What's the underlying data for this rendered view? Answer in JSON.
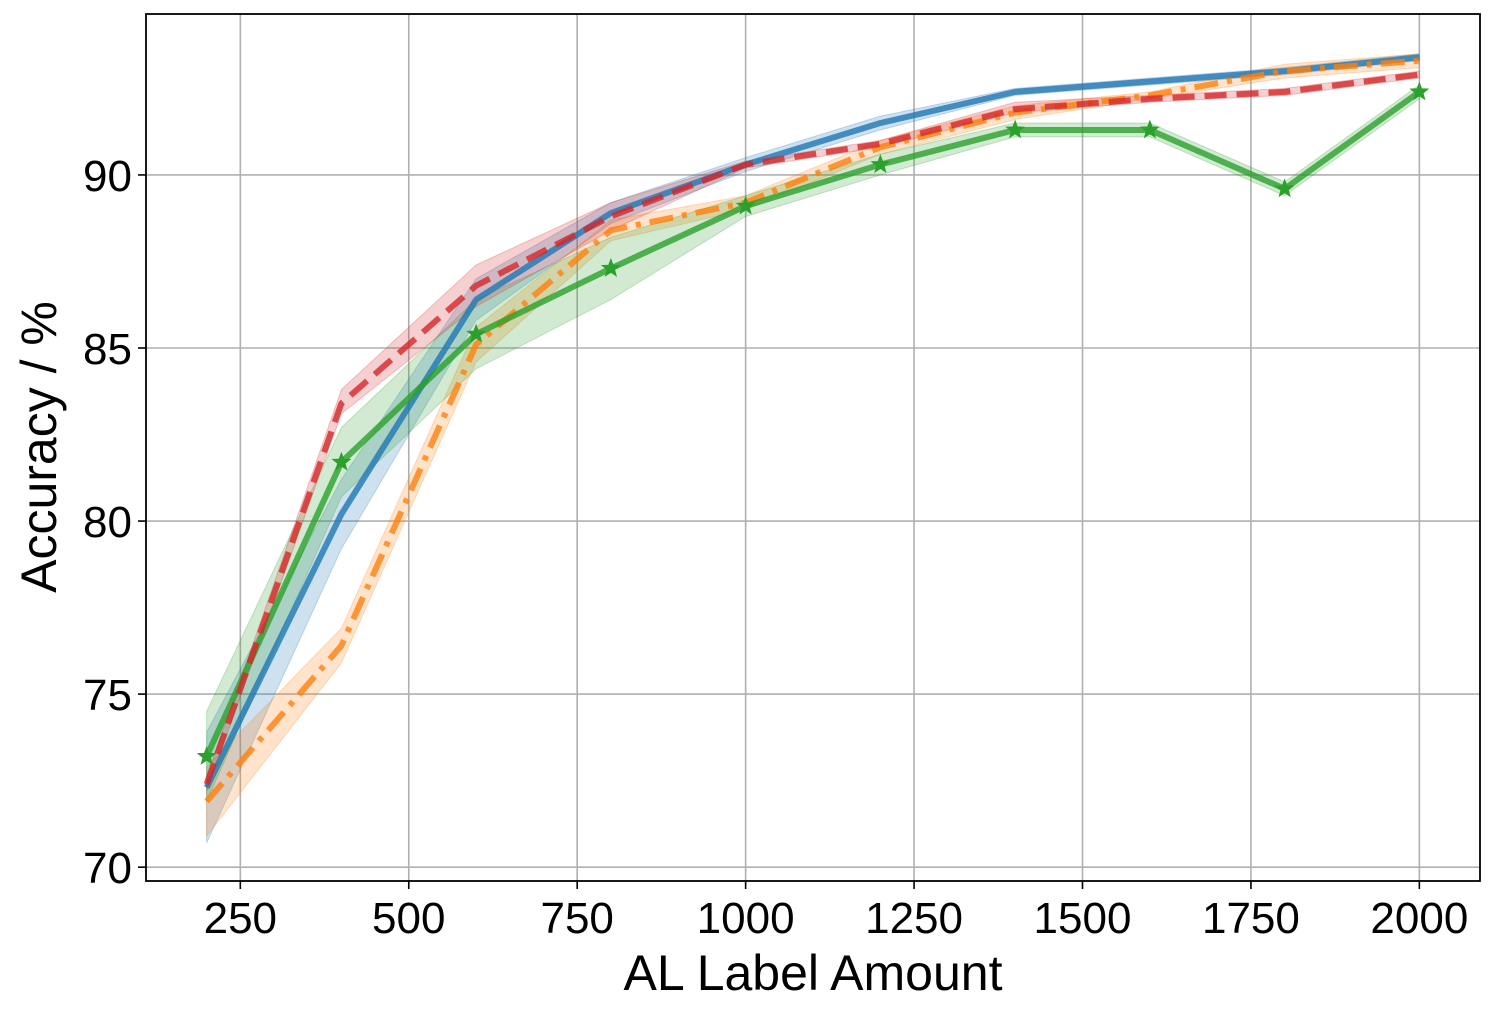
{
  "chart_data": {
    "type": "line",
    "title": "",
    "xlabel": "AL Label Amount",
    "ylabel": "Accuracy / %",
    "xlim": [
      110,
      2090
    ],
    "ylim": [
      69.6,
      94.65
    ],
    "xticks": [
      250,
      500,
      750,
      1000,
      1250,
      1500,
      1750,
      2000
    ],
    "yticks": [
      70,
      75,
      80,
      85,
      90
    ],
    "grid": true,
    "legend": "none",
    "x": [
      200,
      400,
      600,
      800,
      1000,
      1200,
      1400,
      1600,
      1800,
      2000
    ],
    "series": [
      {
        "color": "#1f77b4",
        "line_style": "solid",
        "marker": "none",
        "values": [
          72.3,
          80.2,
          86.4,
          88.9,
          90.3,
          91.5,
          92.4,
          92.7,
          93.0,
          93.4
        ],
        "lower": [
          70.7,
          79.2,
          85.8,
          88.6,
          90.1,
          91.3,
          92.3,
          92.6,
          92.9,
          93.3
        ],
        "upper": [
          73.9,
          81.2,
          87.0,
          89.2,
          90.5,
          91.7,
          92.5,
          92.8,
          93.1,
          93.5
        ]
      },
      {
        "color": "#ff7f0e",
        "line_style": "dashdot",
        "marker": "none",
        "values": [
          71.9,
          76.4,
          85.1,
          88.4,
          89.2,
          90.8,
          91.8,
          92.3,
          93.0,
          93.3
        ],
        "lower": [
          70.9,
          75.9,
          84.6,
          88.1,
          89.0,
          90.6,
          91.6,
          92.2,
          92.8,
          93.1
        ],
        "upper": [
          72.9,
          76.9,
          85.6,
          88.7,
          89.4,
          91.0,
          92.0,
          92.4,
          93.2,
          93.5
        ]
      },
      {
        "color": "#2ca02c",
        "line_style": "solid",
        "marker": "star",
        "values": [
          73.2,
          81.7,
          85.4,
          87.3,
          89.1,
          90.3,
          91.3,
          91.3,
          89.6,
          92.4
        ],
        "lower": [
          71.9,
          80.7,
          84.4,
          86.4,
          88.8,
          90.0,
          91.1,
          91.1,
          89.4,
          92.2
        ],
        "upper": [
          74.5,
          82.7,
          86.4,
          88.2,
          89.4,
          90.6,
          91.5,
          91.5,
          89.8,
          92.6
        ]
      },
      {
        "color": "#d62728",
        "line_style": "dashed",
        "marker": "none",
        "values": [
          72.4,
          83.4,
          86.8,
          88.8,
          90.3,
          90.9,
          91.9,
          92.2,
          92.4,
          92.9
        ],
        "lower": [
          72.2,
          83.1,
          86.2,
          88.4,
          90.2,
          90.8,
          91.8,
          92.1,
          92.3,
          92.8
        ],
        "upper": [
          72.6,
          83.8,
          87.4,
          89.2,
          90.4,
          91.0,
          92.1,
          92.3,
          92.5,
          93.0
        ]
      }
    ]
  }
}
